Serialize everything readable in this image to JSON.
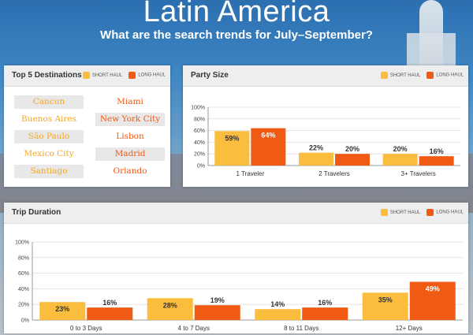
{
  "header": {
    "title": "Latin America",
    "subtitle": "What are the search trends for July–September?"
  },
  "colors": {
    "short_haul": "#fbbd3e",
    "long_haul": "#f05a14"
  },
  "legend": {
    "short": "SHORT HAUL",
    "long": "LONG HAUL"
  },
  "destinations": {
    "title": "Top 5 Destinations",
    "short_haul": [
      "Cancun",
      "Buenos Aires",
      "São Paulo",
      "Mexico City",
      "Santiago"
    ],
    "long_haul": [
      "Miami",
      "New York City",
      "Lisbon",
      "Madrid",
      "Orlando"
    ]
  },
  "party": {
    "title": "Party Size"
  },
  "trip": {
    "title": "Trip Duration"
  },
  "chart_data": [
    {
      "type": "bar",
      "title": "Party Size",
      "categories": [
        "1 Traveler",
        "2 Travelers",
        "3+ Travelers"
      ],
      "series": [
        {
          "name": "SHORT HAUL",
          "values": [
            59,
            22,
            20
          ]
        },
        {
          "name": "LONG HAUL",
          "values": [
            64,
            20,
            16
          ]
        }
      ],
      "ylim": [
        0,
        100
      ],
      "yticks": [
        "0%",
        "20%",
        "40%",
        "60%",
        "80%",
        "100%"
      ],
      "grid": true,
      "legend": "top-right"
    },
    {
      "type": "bar",
      "title": "Trip Duration",
      "categories": [
        "0 to 3 Days",
        "4 to 7 Days",
        "8 to 11 Days",
        "12+ Days"
      ],
      "series": [
        {
          "name": "SHORT HAUL",
          "values": [
            23,
            28,
            14,
            35
          ]
        },
        {
          "name": "LONG HAUL",
          "values": [
            16,
            19,
            16,
            49
          ]
        }
      ],
      "ylim": [
        0,
        100
      ],
      "yticks": [
        "0%",
        "20%",
        "40%",
        "60%",
        "80%",
        "100%"
      ],
      "grid": true,
      "legend": "top-right"
    }
  ]
}
